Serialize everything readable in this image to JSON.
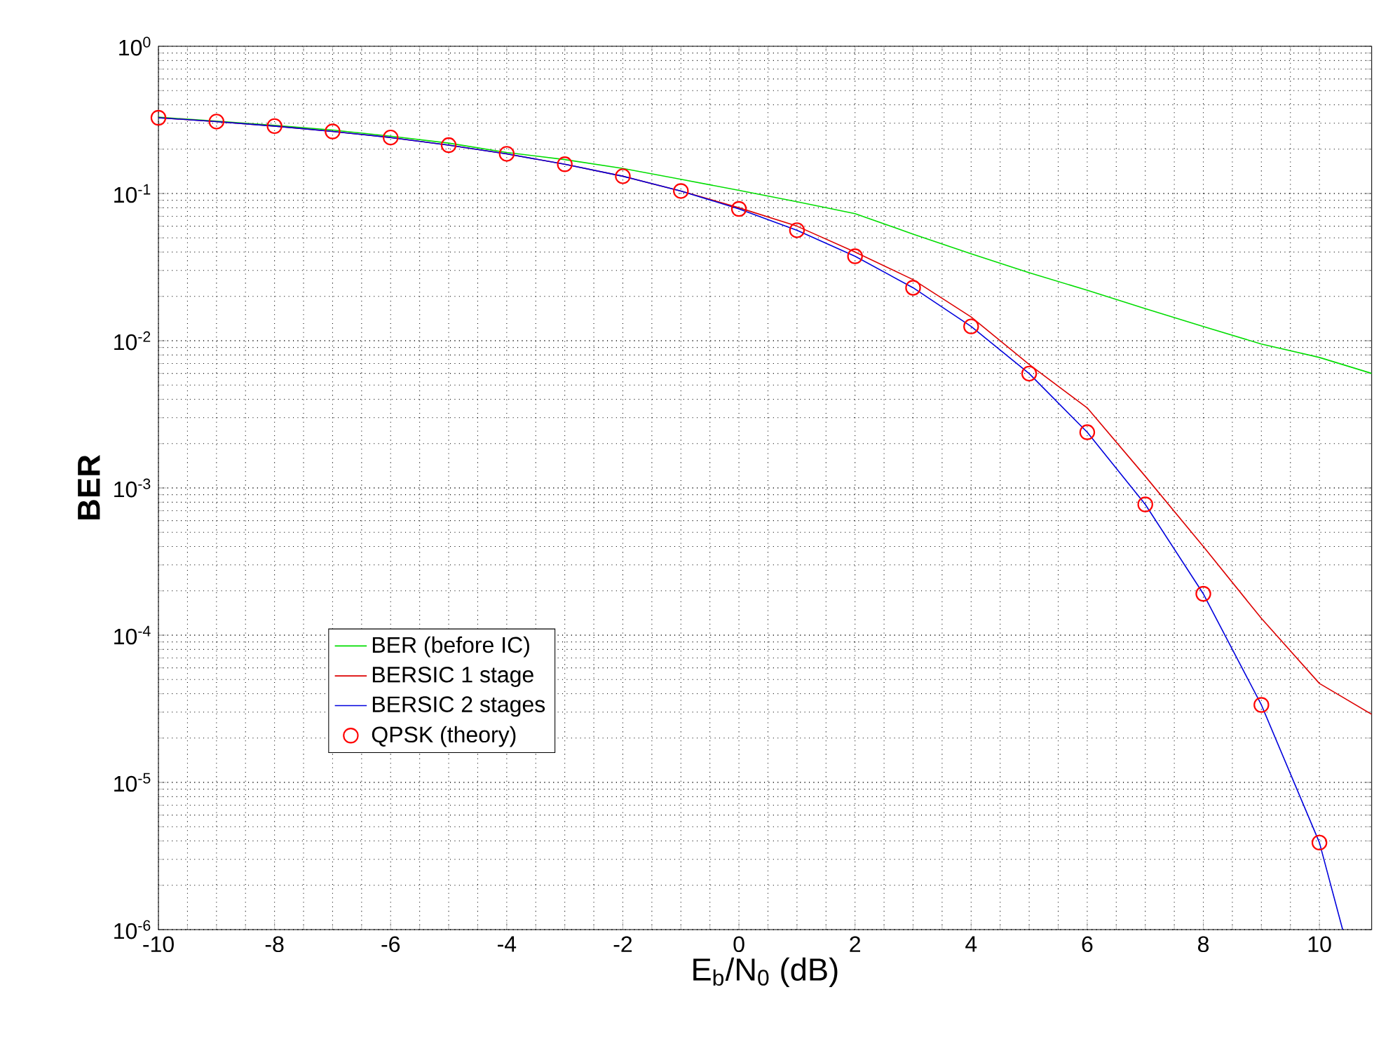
{
  "chart_data": {
    "type": "line",
    "xlabel": "E$_{b}$/N$_{0}$ (dB)",
    "ylabel": "BER",
    "log": "y",
    "grid": true,
    "legend": "bottom left",
    "line_style": "solid",
    "xlim": [
      -10,
      10.9
    ],
    "ylim": [
      1e-06,
      1
    ],
    "xticks": [
      -10,
      -8,
      -6,
      -4,
      -2,
      0,
      2,
      4,
      6,
      8,
      10
    ],
    "yticks": [
      {
        "value": 1e-06,
        "label": "10$^{-6}$"
      },
      {
        "value": 1e-05,
        "label": "10$^{-5}$"
      },
      {
        "value": 0.0001,
        "label": "10$^{-4}$"
      },
      {
        "value": 0.001,
        "label": "10$^{-3}$"
      },
      {
        "value": 0.01,
        "label": "10$^{-2}$"
      },
      {
        "value": 0.1,
        "label": "10$^{-1}$"
      },
      {
        "value": 1,
        "label": "10$^{0}$"
      }
    ],
    "series": [
      {
        "name": "BER (before IC)",
        "color": "#00dd00",
        "x": [
          -10,
          -9,
          -8,
          -7,
          -6,
          -5,
          -4,
          -3,
          -2,
          -1,
          0,
          1,
          2,
          3,
          4,
          5,
          6,
          7,
          8,
          9,
          10,
          10.9
        ],
        "values": [
          0.33,
          0.31,
          0.29,
          0.27,
          0.245,
          0.22,
          0.19,
          0.17,
          0.148,
          0.125,
          0.105,
          0.088,
          0.073,
          0.053,
          0.039,
          0.029,
          0.022,
          0.0165,
          0.0125,
          0.0095,
          0.0077,
          0.006
        ]
      },
      {
        "name": "BERSIC 1 stage",
        "color": "#dd0000",
        "x": [
          -10,
          -9,
          -8,
          -7,
          -6,
          -5,
          -4,
          -3,
          -2,
          -1,
          0,
          1,
          2,
          3,
          4,
          5,
          6,
          7,
          8,
          9,
          10,
          10.9
        ],
        "values": [
          0.327,
          0.308,
          0.287,
          0.264,
          0.24,
          0.213,
          0.186,
          0.158,
          0.131,
          0.104,
          0.08,
          0.06,
          0.04,
          0.026,
          0.0145,
          0.0069,
          0.0035,
          0.0012,
          0.0004,
          0.00013,
          4.7e-05,
          2.9e-05
        ]
      },
      {
        "name": "BERSIC 2 stages",
        "color": "#0000dd",
        "x": [
          -10,
          -9,
          -8,
          -7,
          -6,
          -5,
          -4,
          -3,
          -2,
          -1,
          0,
          1,
          2,
          3,
          4,
          5,
          6,
          7,
          8,
          9,
          10,
          10.4
        ],
        "values": [
          0.327,
          0.308,
          0.287,
          0.264,
          0.24,
          0.213,
          0.186,
          0.158,
          0.131,
          0.104,
          0.0786,
          0.0563,
          0.0375,
          0.0229,
          0.0125,
          0.00598,
          0.00239,
          0.000773,
          0.000191,
          3.36e-05,
          3.9e-06,
          1e-06
        ]
      },
      {
        "name": "QPSK (theory)",
        "type": "scatter",
        "marker": "circle",
        "color": "#ff0000",
        "x": [
          -10,
          -9,
          -8,
          -7,
          -6,
          -5,
          -4,
          -3,
          -2,
          -1,
          0,
          1,
          2,
          3,
          4,
          5,
          6,
          7,
          8,
          9,
          10
        ],
        "values": [
          0.327,
          0.308,
          0.287,
          0.264,
          0.24,
          0.213,
          0.186,
          0.158,
          0.131,
          0.104,
          0.0786,
          0.0563,
          0.0375,
          0.0229,
          0.0125,
          0.00598,
          0.00239,
          0.000773,
          0.000191,
          3.36e-05,
          3.9e-06
        ]
      }
    ]
  }
}
